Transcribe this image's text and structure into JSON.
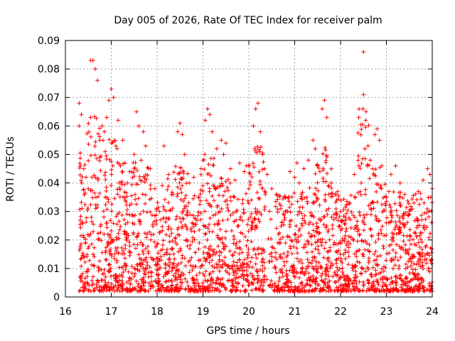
{
  "chart_data": {
    "type": "scatter",
    "title": "Day 005 of 2026, Rate Of TEC Index for receiver palm",
    "xlabel": "GPS time / hours",
    "ylabel": "ROTI / TECUs",
    "xlim": [
      16,
      24
    ],
    "ylim": [
      0,
      0.09
    ],
    "x_ticks": [
      "16",
      "17",
      "18",
      "19",
      "20",
      "21",
      "22",
      "23",
      "24"
    ],
    "y_ticks": [
      "0",
      "0.01",
      "0.02",
      "0.03",
      "0.04",
      "0.05",
      "0.06",
      "0.07",
      "0.08",
      "0.09"
    ],
    "grid": true,
    "marker": "plus",
    "color": "#ff0000",
    "series": [
      {
        "name": "ROTI",
        "points": [
          [
            16.3,
            0.06
          ],
          [
            16.3,
            0.068
          ],
          [
            16.35,
            0.064
          ],
          [
            16.4,
            0.045
          ],
          [
            16.45,
            0.042
          ],
          [
            16.5,
            0.038
          ],
          [
            16.55,
            0.063
          ],
          [
            16.55,
            0.083
          ],
          [
            16.6,
            0.083
          ],
          [
            16.65,
            0.08
          ],
          [
            16.7,
            0.076
          ],
          [
            16.75,
            0.055
          ],
          [
            16.8,
            0.06
          ],
          [
            16.85,
            0.058
          ],
          [
            16.9,
            0.063
          ],
          [
            16.95,
            0.069
          ],
          [
            17.0,
            0.073
          ],
          [
            17.05,
            0.07
          ],
          [
            17.1,
            0.053
          ],
          [
            17.15,
            0.062
          ],
          [
            17.2,
            0.046
          ],
          [
            17.25,
            0.055
          ],
          [
            17.3,
            0.047
          ],
          [
            17.35,
            0.04
          ],
          [
            17.4,
            0.044
          ],
          [
            17.5,
            0.05
          ],
          [
            17.55,
            0.065
          ],
          [
            17.6,
            0.06
          ],
          [
            17.65,
            0.048
          ],
          [
            17.7,
            0.058
          ],
          [
            17.75,
            0.053
          ],
          [
            17.85,
            0.045
          ],
          [
            17.95,
            0.038
          ],
          [
            18.05,
            0.03
          ],
          [
            18.15,
            0.053
          ],
          [
            18.25,
            0.043
          ],
          [
            18.35,
            0.036
          ],
          [
            18.45,
            0.058
          ],
          [
            18.5,
            0.061
          ],
          [
            18.55,
            0.057
          ],
          [
            18.6,
            0.05
          ],
          [
            18.7,
            0.04
          ],
          [
            18.8,
            0.042
          ],
          [
            18.9,
            0.035
          ],
          [
            19.0,
            0.048
          ],
          [
            19.05,
            0.062
          ],
          [
            19.1,
            0.066
          ],
          [
            19.15,
            0.064
          ],
          [
            19.2,
            0.058
          ],
          [
            19.3,
            0.052
          ],
          [
            19.4,
            0.055
          ],
          [
            19.45,
            0.05
          ],
          [
            19.5,
            0.054
          ],
          [
            19.6,
            0.045
          ],
          [
            19.7,
            0.041
          ],
          [
            19.8,
            0.047
          ],
          [
            19.9,
            0.044
          ],
          [
            19.95,
            0.046
          ],
          [
            20.0,
            0.038
          ],
          [
            20.1,
            0.06
          ],
          [
            20.15,
            0.066
          ],
          [
            20.2,
            0.068
          ],
          [
            20.25,
            0.058
          ],
          [
            20.3,
            0.05
          ],
          [
            20.4,
            0.043
          ],
          [
            20.5,
            0.038
          ],
          [
            20.6,
            0.036
          ],
          [
            20.7,
            0.032
          ],
          [
            20.8,
            0.035
          ],
          [
            20.9,
            0.044
          ],
          [
            21.0,
            0.042
          ],
          [
            21.05,
            0.047
          ],
          [
            21.1,
            0.04
          ],
          [
            21.2,
            0.045
          ],
          [
            21.3,
            0.048
          ],
          [
            21.4,
            0.055
          ],
          [
            21.45,
            0.052
          ],
          [
            21.5,
            0.046
          ],
          [
            21.55,
            0.044
          ],
          [
            21.6,
            0.066
          ],
          [
            21.65,
            0.069
          ],
          [
            21.7,
            0.063
          ],
          [
            21.8,
            0.04
          ],
          [
            21.9,
            0.036
          ],
          [
            22.0,
            0.03
          ],
          [
            22.1,
            0.028
          ],
          [
            22.2,
            0.033
          ],
          [
            22.3,
            0.043
          ],
          [
            22.4,
            0.046
          ],
          [
            22.45,
            0.04
          ],
          [
            22.5,
            0.086
          ],
          [
            22.5,
            0.071
          ],
          [
            22.55,
            0.062
          ],
          [
            22.6,
            0.053
          ],
          [
            22.65,
            0.048
          ],
          [
            22.7,
            0.045
          ],
          [
            22.75,
            0.057
          ],
          [
            22.8,
            0.059
          ],
          [
            22.85,
            0.055
          ],
          [
            22.9,
            0.046
          ],
          [
            23.0,
            0.035
          ],
          [
            23.1,
            0.043
          ],
          [
            23.2,
            0.046
          ],
          [
            23.3,
            0.04
          ],
          [
            23.4,
            0.036
          ],
          [
            23.5,
            0.03
          ],
          [
            23.6,
            0.033
          ],
          [
            23.7,
            0.037
          ],
          [
            23.8,
            0.041
          ],
          [
            23.9,
            0.045
          ],
          [
            23.95,
            0.043
          ],
          [
            24.0,
            0.038
          ],
          [
            24.0,
            0.002
          ]
        ]
      }
    ],
    "background_density": "dense red + markers spanning GPS time 16.3 to 24 with ROTI values concentrated between 0.002 and 0.035 TECUs"
  }
}
